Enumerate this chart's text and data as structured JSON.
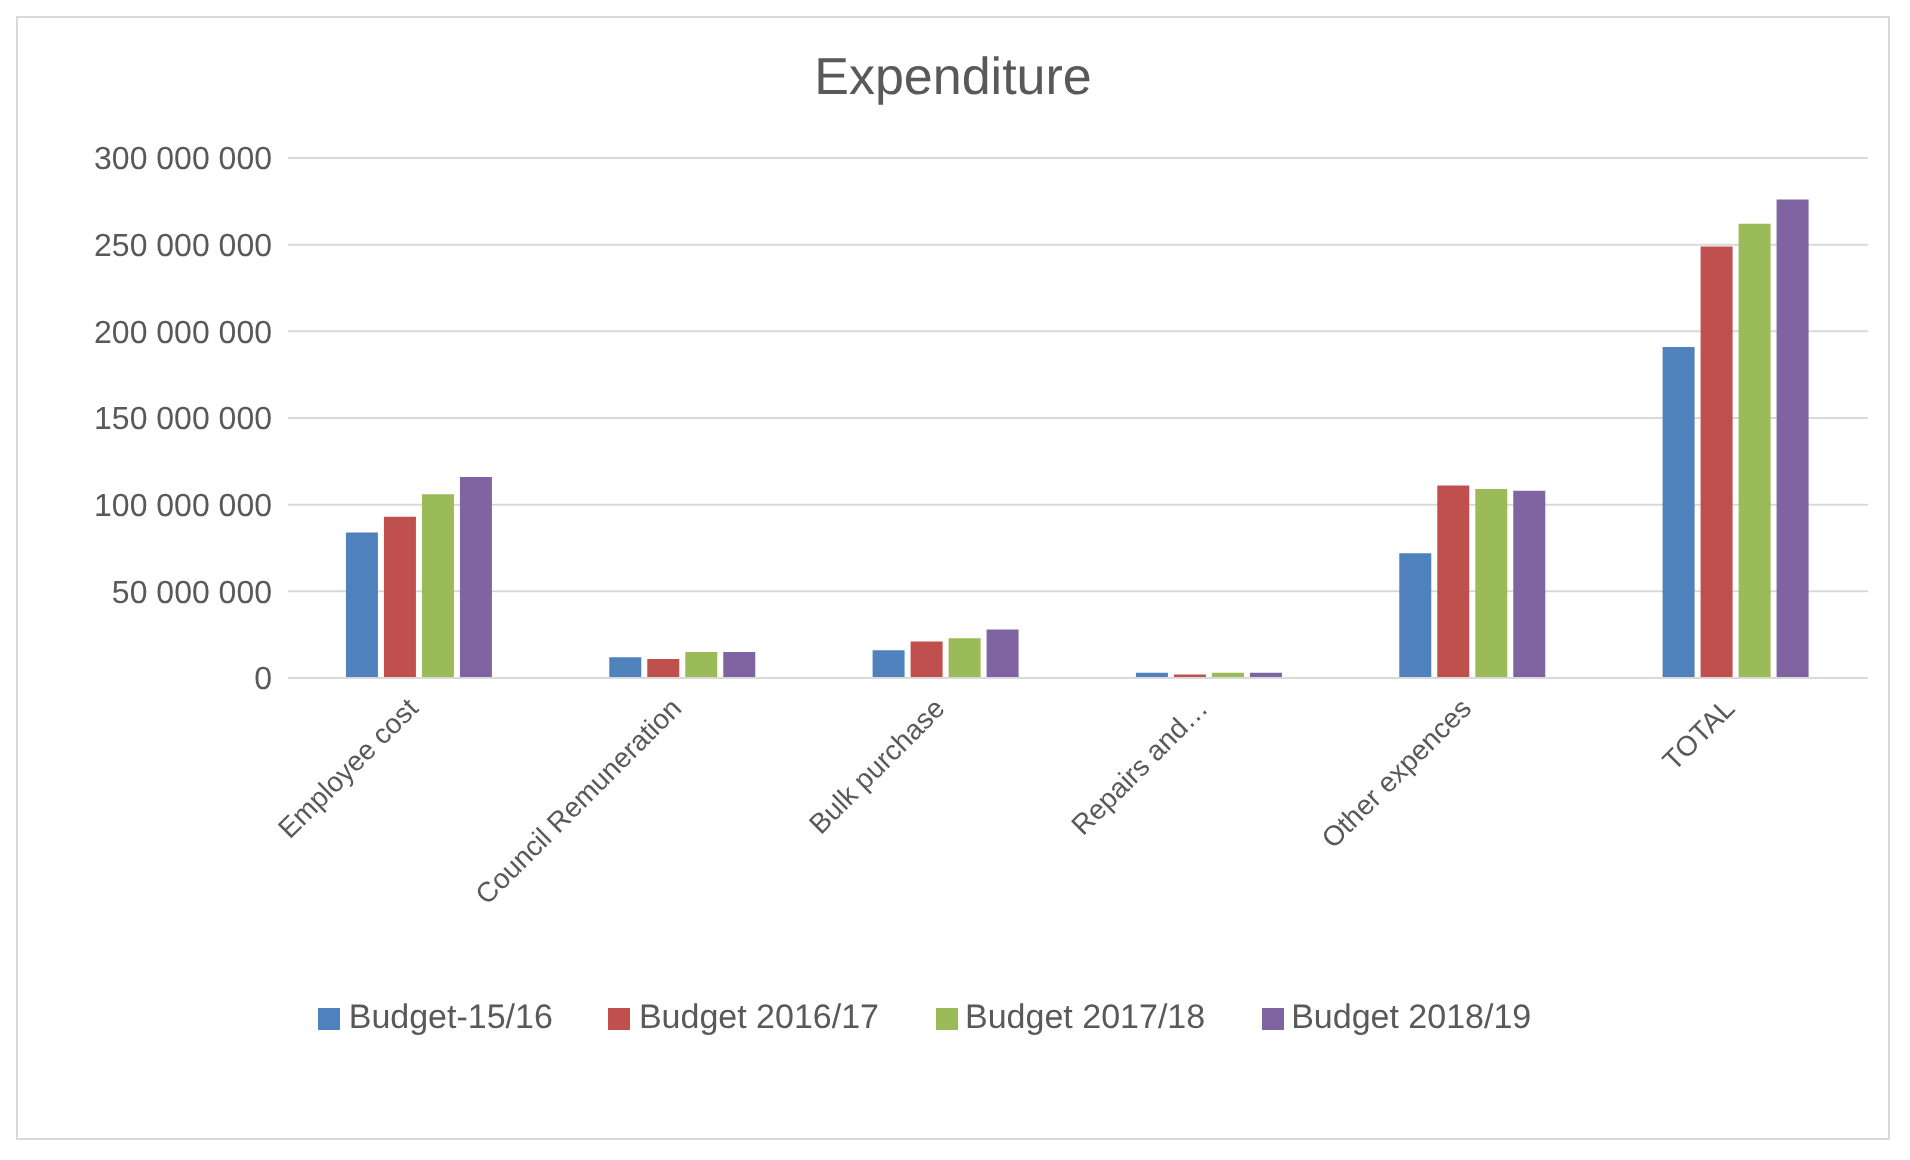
{
  "chart_data": {
    "type": "bar",
    "title": "Expenditure",
    "categories": [
      "Employee cost",
      "Council Remuneration",
      "Bulk purchase",
      "Repairs and…",
      "Other expences",
      "TOTAL"
    ],
    "series": [
      {
        "name": "Budget-15/16",
        "color": "#4f81bd",
        "values": [
          84000000,
          12000000,
          16000000,
          3000000,
          72000000,
          191000000
        ]
      },
      {
        "name": "Budget 2016/17",
        "color": "#c0504d",
        "values": [
          93000000,
          11000000,
          21000000,
          2000000,
          111000000,
          249000000
        ]
      },
      {
        "name": "Budget 2017/18",
        "color": "#9bbb59",
        "values": [
          106000000,
          15000000,
          23000000,
          3000000,
          109000000,
          262000000
        ]
      },
      {
        "name": "Budget 2018/19",
        "color": "#8064a2",
        "values": [
          116000000,
          15000000,
          28000000,
          3000000,
          108000000,
          276000000
        ]
      }
    ],
    "ylim": [
      0,
      300000000
    ],
    "yticks": [
      {
        "value": 0,
        "label": "0"
      },
      {
        "value": 50000000,
        "label": "50 000 000"
      },
      {
        "value": 100000000,
        "label": "100 000 000"
      },
      {
        "value": 150000000,
        "label": "150 000 000"
      },
      {
        "value": 200000000,
        "label": "200 000 000"
      },
      {
        "value": 250000000,
        "label": "250 000 000"
      },
      {
        "value": 300000000,
        "label": "300 000 000"
      }
    ],
    "grid": "y",
    "legend": "bottom"
  }
}
